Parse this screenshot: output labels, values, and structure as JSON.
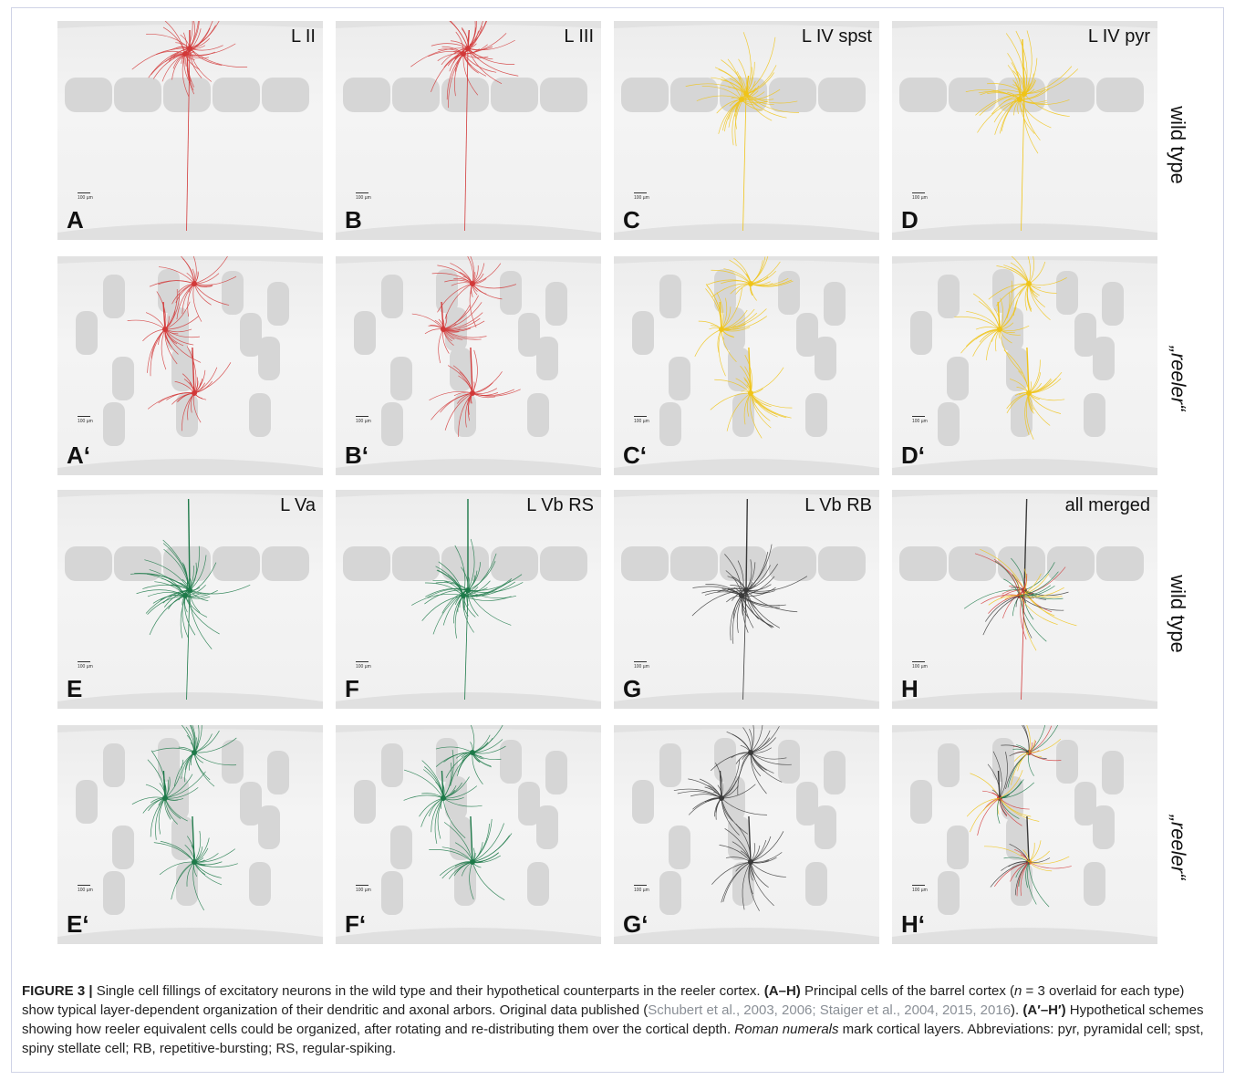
{
  "figure": {
    "panels": [
      {
        "id": "A",
        "letter": "A",
        "title": "L II",
        "palette": "red",
        "row": 0,
        "col": 0
      },
      {
        "id": "B",
        "letter": "B",
        "title": "L III",
        "palette": "red",
        "row": 0,
        "col": 1
      },
      {
        "id": "C",
        "letter": "C",
        "title": "L IV spst",
        "palette": "yellow",
        "row": 0,
        "col": 2
      },
      {
        "id": "D",
        "letter": "D",
        "title": "L IV pyr",
        "palette": "yellow",
        "row": 0,
        "col": 3
      },
      {
        "id": "A2",
        "letter": "A‘",
        "title": "",
        "palette": "red",
        "row": 1,
        "col": 0
      },
      {
        "id": "B2",
        "letter": "B‘",
        "title": "",
        "palette": "red",
        "row": 1,
        "col": 1
      },
      {
        "id": "C2",
        "letter": "C‘",
        "title": "",
        "palette": "yellow",
        "row": 1,
        "col": 2
      },
      {
        "id": "D2",
        "letter": "D‘",
        "title": "",
        "palette": "yellow",
        "row": 1,
        "col": 3
      },
      {
        "id": "E",
        "letter": "E",
        "title": "L Va",
        "palette": "green",
        "row": 2,
        "col": 0
      },
      {
        "id": "F",
        "letter": "F",
        "title": "L Vb RS",
        "palette": "green",
        "row": 2,
        "col": 1
      },
      {
        "id": "G",
        "letter": "G",
        "title": "L Vb RB",
        "palette": "gray",
        "row": 2,
        "col": 2
      },
      {
        "id": "H",
        "letter": "H",
        "title": "all merged",
        "palette": "mixed",
        "row": 2,
        "col": 3
      },
      {
        "id": "E2",
        "letter": "E‘",
        "title": "",
        "palette": "green",
        "row": 3,
        "col": 0
      },
      {
        "id": "F2",
        "letter": "F‘",
        "title": "",
        "palette": "green",
        "row": 3,
        "col": 1
      },
      {
        "id": "G2",
        "letter": "G‘",
        "title": "",
        "palette": "gray",
        "row": 3,
        "col": 2
      },
      {
        "id": "H2",
        "letter": "H‘",
        "title": "",
        "palette": "mixed",
        "row": 3,
        "col": 3
      }
    ],
    "scale_label": "100 µm",
    "row_labels": [
      "wild type",
      "„reeler“",
      "wild type",
      "„reeler“"
    ],
    "colors": {
      "red": "#d23a3a",
      "yellow": "#f0c419",
      "green": "#1f7a4a",
      "gray": "#3a3a3a",
      "barrel": "#d6d6d6"
    }
  },
  "caption": {
    "label": "FIGURE 3 |",
    "text1": " Single cell fillings of excitatory neurons in the wild type and their hypothetical counterparts in the reeler cortex. ",
    "bold1": "(A–H)",
    "text2": " Principal cells of the barrel cortex (",
    "n_eq": "n",
    "text3": " = 3 overlaid for each type) show typical layer-dependent organization of their dendritic and axonal arbors. Original data published (",
    "refs": "Schubert et al., 2003, 2006; Staiger et al., 2004, 2015, 2016",
    "text4": "). ",
    "bold2": "(A′–H′)",
    "text5": " Hypothetical schemes showing how reeler equivalent cells could be organized, after rotating and re-distributing them over the cortical depth. ",
    "italic1": "Roman numerals",
    "text6": " mark cortical layers. Abbreviations: pyr, pyramidal cell; spst, spiny stellate cell; RB, repetitive-bursting; RS, regular-spiking."
  }
}
